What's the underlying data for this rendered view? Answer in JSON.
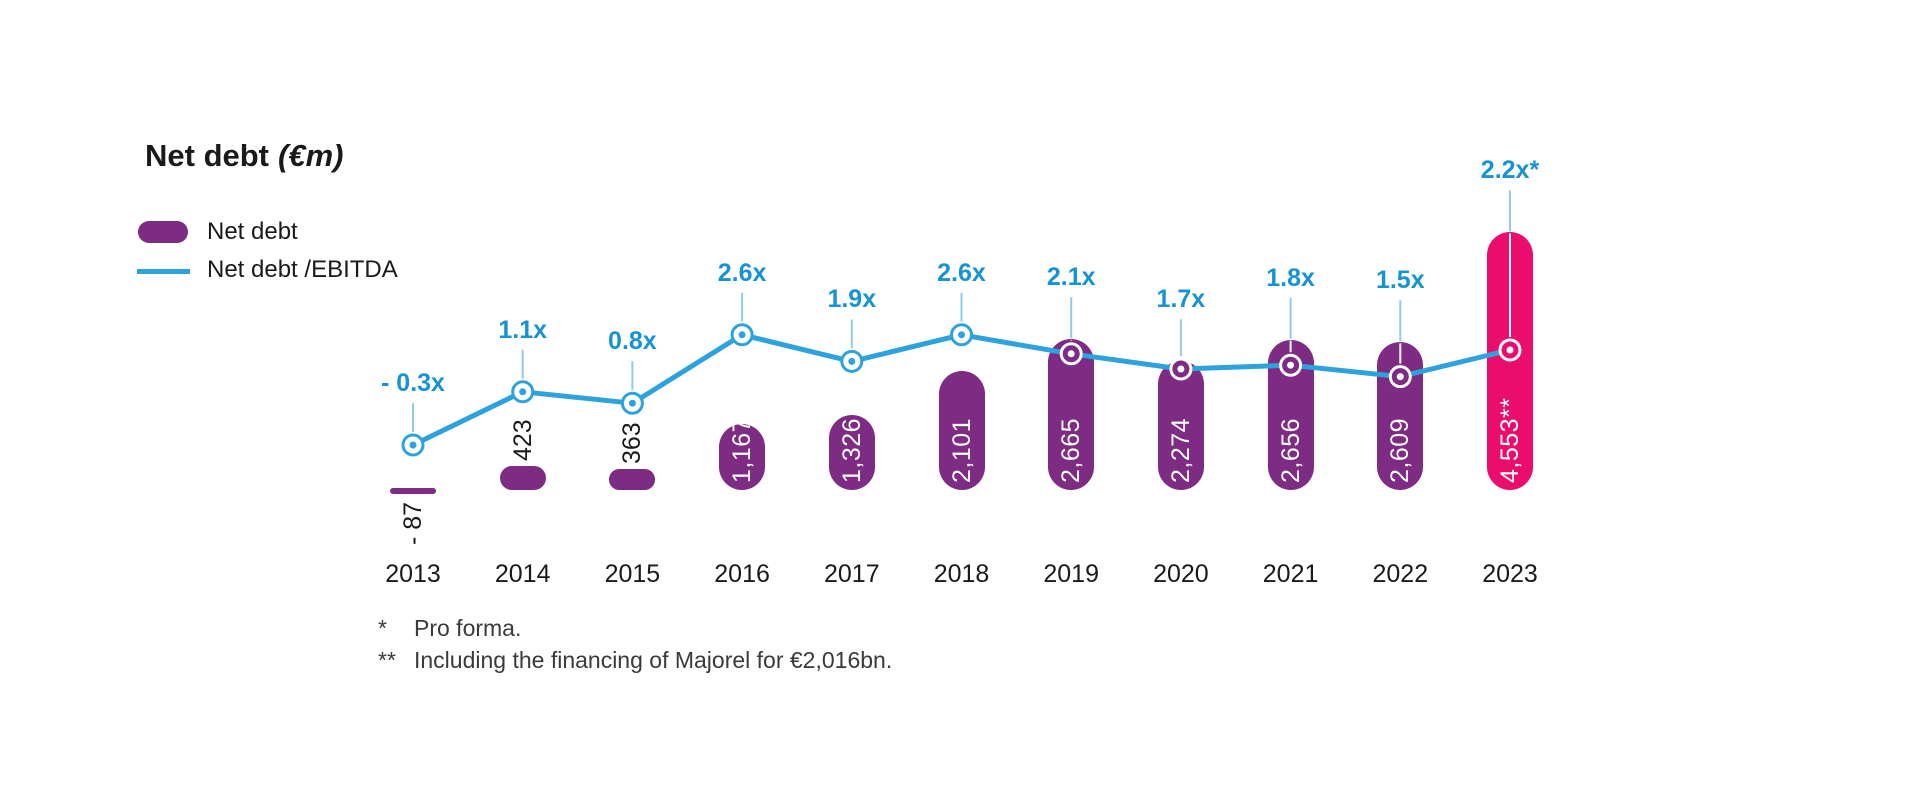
{
  "title": {
    "main": "Net debt",
    "unit": "(€m)"
  },
  "legend": {
    "items": [
      {
        "label": "Net debt",
        "swatch": "bar-swatch"
      },
      {
        "label": "Net debt /EBITDA",
        "swatch": "line-swatch"
      }
    ]
  },
  "footnotes": [
    {
      "marker": "*",
      "text": "Pro forma."
    },
    {
      "marker": "**",
      "text": "Including the financing of Majorel for €2,016bn."
    }
  ],
  "colors": {
    "bar": "#7D2B83",
    "bar_highlight": "#EB0D6E",
    "line": "#2EA2DC",
    "ratio_text": "#1793D3",
    "leader": "#8FCBEC",
    "leader_on_bar": "#FFFFFF",
    "text": "#1A1A1A"
  },
  "chart_data": {
    "type": "bar",
    "title": "Net debt (€m)",
    "categories": [
      "2013",
      "2014",
      "2015",
      "2016",
      "2017",
      "2018",
      "2019",
      "2020",
      "2021",
      "2022",
      "2023"
    ],
    "series": [
      {
        "name": "Net debt",
        "type": "bar",
        "values": [
          -87,
          423,
          363,
          1167,
          1326,
          2101,
          2665,
          2274,
          2656,
          2609,
          4553
        ],
        "labels": [
          "- 87",
          "423",
          "363",
          "1,167",
          "1,326",
          "2,101",
          "2,665",
          "2,274",
          "2,656",
          "2,609",
          "4,553**"
        ]
      },
      {
        "name": "Net debt /EBITDA",
        "type": "line",
        "values": [
          -0.3,
          1.1,
          0.8,
          2.6,
          1.9,
          2.6,
          2.1,
          1.7,
          1.8,
          1.5,
          2.2
        ],
        "labels": [
          "- 0.3x",
          "1.1x",
          "0.8x",
          "2.6x",
          "1.9x",
          "2.6x",
          "2.1x",
          "1.7x",
          "1.8x",
          "1.5x",
          "2.2x*"
        ]
      }
    ],
    "highlight_index": 10,
    "ylabel": "Net debt (€m)",
    "grid": false,
    "legend_position": "top-left"
  }
}
